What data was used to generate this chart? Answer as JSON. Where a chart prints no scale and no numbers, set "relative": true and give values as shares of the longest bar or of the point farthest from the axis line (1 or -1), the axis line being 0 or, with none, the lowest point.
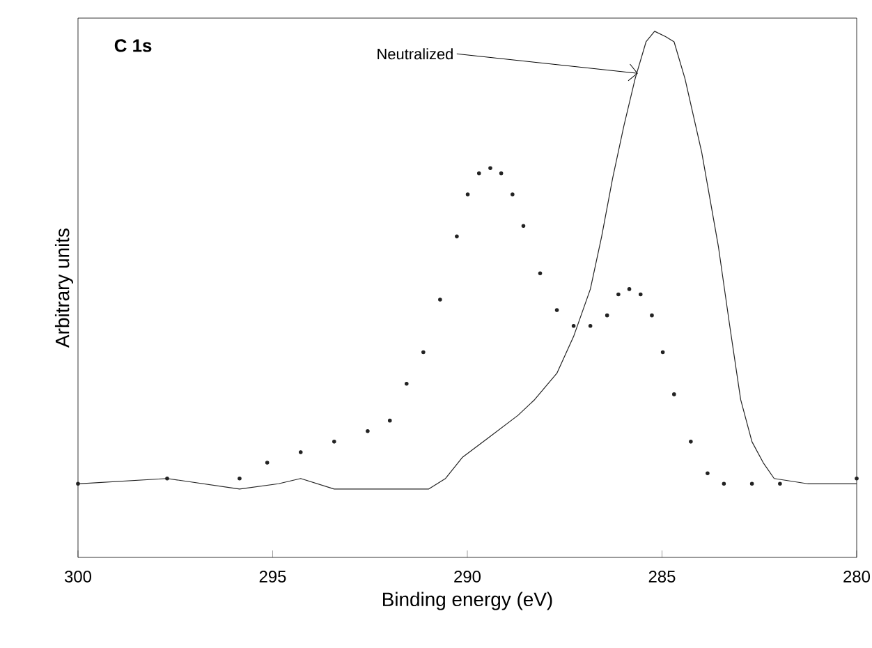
{
  "chart_data": {
    "type": "line",
    "title": "C 1s",
    "xlabel": "Binding energy (eV)",
    "ylabel": "Arbitrary units",
    "relative": true,
    "xlim": [
      300,
      280
    ],
    "xticks": [
      300,
      295,
      290,
      285,
      280
    ],
    "tick_labels": "x",
    "grid": false,
    "annotations": [
      {
        "text": "Neutralized",
        "x": 285.62,
        "y": 0.92
      }
    ],
    "series": [
      {
        "type": "scatter",
        "marker": "circle",
        "color": "#222222",
        "x": [
          300.0,
          297.71,
          295.85,
          295.14,
          294.28,
          293.42,
          292.56,
          291.99,
          291.56,
          291.13,
          290.7,
          290.27,
          289.99,
          289.7,
          289.41,
          289.13,
          288.84,
          288.56,
          288.13,
          287.7,
          287.27,
          286.84,
          286.41,
          286.12,
          285.84,
          285.55,
          285.26,
          284.98,
          284.69,
          284.26,
          283.83,
          283.41,
          282.69,
          281.97,
          280.0
        ],
        "values": [
          0.14,
          0.15,
          0.15,
          0.18,
          0.2,
          0.22,
          0.24,
          0.26,
          0.33,
          0.39,
          0.49,
          0.61,
          0.69,
          0.73,
          0.74,
          0.73,
          0.69,
          0.63,
          0.54,
          0.47,
          0.44,
          0.44,
          0.46,
          0.5,
          0.51,
          0.5,
          0.46,
          0.39,
          0.31,
          0.22,
          0.16,
          0.14,
          0.14,
          0.14,
          0.15
        ]
      },
      {
        "marker": "none",
        "line_style": "solid",
        "color": "#222222",
        "x": [
          300.0,
          297.71,
          295.85,
          294.85,
          294.28,
          293.42,
          292.85,
          291.99,
          290.99,
          290.56,
          290.13,
          289.41,
          288.7,
          288.27,
          287.7,
          287.27,
          286.84,
          286.55,
          286.27,
          285.98,
          285.69,
          285.41,
          285.19,
          284.91,
          284.69,
          284.41,
          283.98,
          283.55,
          283.26,
          282.98,
          282.69,
          282.4,
          282.12,
          281.26,
          280.0
        ],
        "values": [
          0.14,
          0.15,
          0.13,
          0.14,
          0.15,
          0.13,
          0.13,
          0.13,
          0.13,
          0.15,
          0.19,
          0.23,
          0.27,
          0.3,
          0.35,
          0.42,
          0.51,
          0.61,
          0.72,
          0.82,
          0.91,
          0.98,
          1.0,
          0.99,
          0.98,
          0.91,
          0.77,
          0.59,
          0.44,
          0.3,
          0.22,
          0.18,
          0.15,
          0.14,
          0.14
        ]
      }
    ]
  }
}
